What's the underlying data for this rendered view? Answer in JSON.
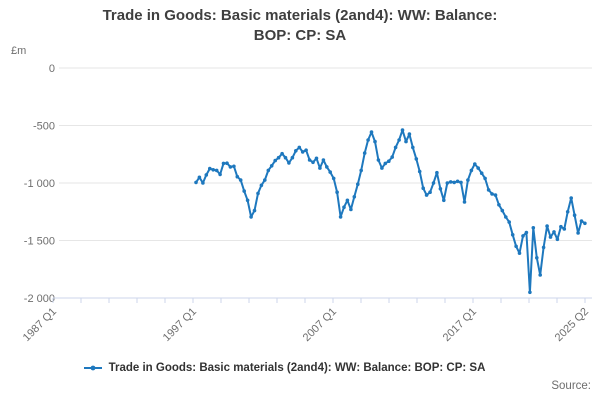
{
  "title_line1": "Trade in Goods: Basic materials (2and4): WW: Balance:",
  "title_line2": "BOP: CP: SA",
  "y_unit": "£m",
  "legend": {
    "label": "Trade in Goods: Basic materials (2and4): WW: Balance: BOP: CP: SA"
  },
  "source_label": "Source:",
  "colors": {
    "series": "#1e78be",
    "gridline": "#e6e6e6",
    "axis": "#ccd6eb",
    "muted_text": "#6e6e6e",
    "title_text": "#3f3f3f",
    "legend_text": "#333333"
  },
  "chart_data": {
    "type": "line",
    "title": "Trade in Goods: Basic materials (2and4): WW: Balance: BOP: CP: SA",
    "ylabel": "£m",
    "ylim": [
      -2000,
      0
    ],
    "grid": true,
    "legend_position": "bottom",
    "x_axis_range": [
      "1987 Q1",
      "2025 Q2"
    ],
    "x_tick_labels": [
      {
        "label": "1987 Q1",
        "k": 0
      },
      {
        "label": "1997 Q1",
        "k": 5
      },
      {
        "label": "2007 Q1",
        "k": 10
      },
      {
        "label": "2017 Q1",
        "k": 15
      },
      {
        "label": "2025 Q2",
        "k": 19
      }
    ],
    "y_ticks": [
      {
        "label": "0",
        "v": 0
      },
      {
        "label": "-500",
        "v": -500
      },
      {
        "label": "-1 000",
        "v": -1000
      },
      {
        "label": "-1 500",
        "v": -1500
      },
      {
        "label": "-2 000",
        "v": -2000
      }
    ],
    "series": [
      {
        "name": "Trade in Goods: Basic materials (2and4): WW: Balance: BOP: CP: SA",
        "frequency": "quarterly",
        "start": "1997 Q1",
        "end": "2025 Q2",
        "values": [
          -995,
          -950,
          -1000,
          -930,
          -875,
          -885,
          -890,
          -925,
          -830,
          -828,
          -860,
          -855,
          -945,
          -975,
          -1070,
          -1150,
          -1295,
          -1240,
          -1090,
          -1020,
          -975,
          -890,
          -850,
          -805,
          -780,
          -745,
          -780,
          -825,
          -780,
          -720,
          -690,
          -730,
          -715,
          -800,
          -820,
          -785,
          -870,
          -800,
          -860,
          -905,
          -960,
          -1080,
          -1295,
          -1210,
          -1150,
          -1230,
          -1120,
          -1010,
          -890,
          -740,
          -626,
          -557,
          -640,
          -800,
          -870,
          -830,
          -810,
          -775,
          -690,
          -626,
          -540,
          -640,
          -575,
          -690,
          -790,
          -900,
          -1045,
          -1105,
          -1080,
          -1000,
          -910,
          -1050,
          -1150,
          -1000,
          -990,
          -995,
          -985,
          -995,
          -1165,
          -975,
          -890,
          -835,
          -870,
          -915,
          -960,
          -1060,
          -1095,
          -1105,
          -1190,
          -1240,
          -1296,
          -1340,
          -1450,
          -1550,
          -1610,
          -1460,
          -1430,
          -1950,
          -1390,
          -1650,
          -1800,
          -1560,
          -1375,
          -1470,
          -1425,
          -1490,
          -1380,
          -1400,
          -1250,
          -1130,
          -1280,
          -1435,
          -1330,
          -1350
        ]
      }
    ]
  }
}
